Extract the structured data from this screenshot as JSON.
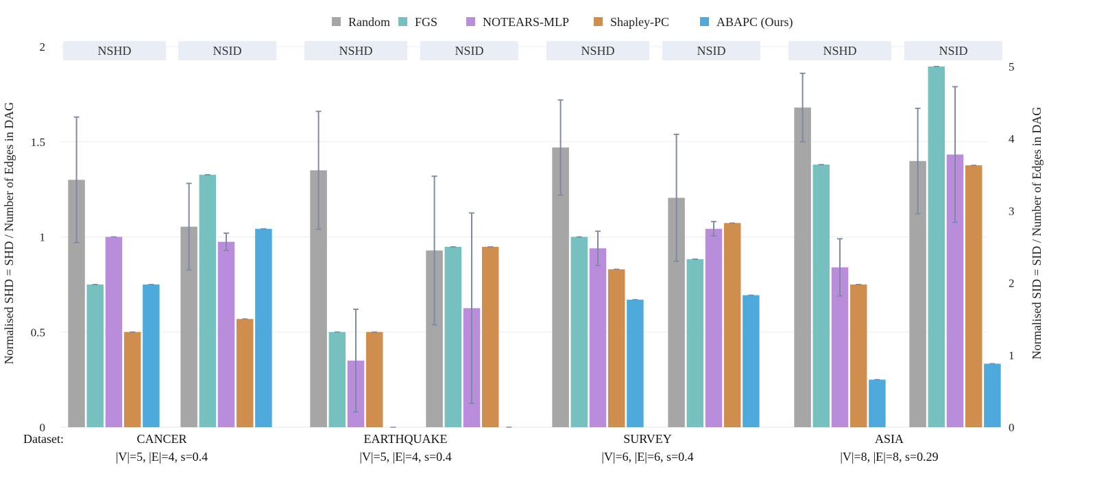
{
  "chart_data": {
    "type": "bar",
    "legend": {
      "placement": "top-center",
      "entries": [
        {
          "name": "Random",
          "color": "#a6a6a6"
        },
        {
          "name": "FGS",
          "color": "#76c1bf"
        },
        {
          "name": "NOTEARS-MLP",
          "color": "#b98ddb"
        },
        {
          "name": "Shapley-PC",
          "color": "#cf8d4e"
        },
        {
          "name": "ABAPC (Ours)",
          "color": "#4faadc"
        }
      ]
    },
    "left_axis": {
      "title": "Normalised SHD = SHD / Number of Edges in DAG",
      "range": [
        0,
        2
      ],
      "ticks": [
        "0",
        "0.5",
        "1",
        "1.5",
        "2"
      ],
      "tick_values": [
        0,
        0.5,
        1,
        1.5,
        2
      ]
    },
    "right_axis": {
      "title": "Normalised SID = SID / Number of Edges in DAG",
      "range": [
        0,
        5.25
      ],
      "ticks": [
        "0",
        "1",
        "2",
        "3",
        "4",
        "5"
      ],
      "tick_values": [
        0,
        1,
        2,
        3,
        4,
        5
      ]
    },
    "grid": true,
    "x_prefix": "Dataset:",
    "datasets": [
      {
        "name": "CANCER",
        "sub": "|V|=5, |E|=4, s=0.4",
        "panels": [
          {
            "metric": "NSHD",
            "axis": "left",
            "values": [
              1.3,
              0.75,
              1.0,
              0.5,
              0.75
            ],
            "errors": [
              0.33,
              0.0,
              0.0,
              0.0,
              0.0
            ]
          },
          {
            "metric": "NSID",
            "axis": "right",
            "values": [
              2.78,
              3.5,
              2.57,
              1.5,
              2.75
            ],
            "errors": [
              0.6,
              0.0,
              0.12,
              0.0,
              0.0
            ]
          }
        ]
      },
      {
        "name": "EARTHQUAKE",
        "sub": "|V|=5, |E|=4, s=0.4",
        "panels": [
          {
            "metric": "NSHD",
            "axis": "left",
            "values": [
              1.35,
              0.5,
              0.35,
              0.5,
              0.0
            ],
            "errors": [
              0.31,
              0.0,
              0.27,
              0.0,
              0.0
            ]
          },
          {
            "metric": "NSID",
            "axis": "right",
            "values": [
              2.45,
              2.5,
              1.65,
              2.5,
              0.0
            ],
            "errors": [
              1.03,
              0.0,
              1.32,
              0.0,
              0.0
            ]
          }
        ]
      },
      {
        "name": "SURVEY",
        "sub": "|V|=6, |E|=6, s=0.4",
        "panels": [
          {
            "metric": "NSHD",
            "axis": "left",
            "values": [
              1.47,
              1.0,
              0.94,
              0.83,
              0.67
            ],
            "errors": [
              0.25,
              0.0,
              0.09,
              0.0,
              0.0
            ]
          },
          {
            "metric": "NSID",
            "axis": "right",
            "values": [
              3.18,
              2.33,
              2.75,
              2.83,
              1.83
            ],
            "errors": [
              0.88,
              0.0,
              0.1,
              0.0,
              0.0
            ]
          }
        ]
      },
      {
        "name": "ASIA",
        "sub": "|V|=8, |E|=8, s=0.29",
        "panels": [
          {
            "metric": "NSHD",
            "axis": "left",
            "values": [
              1.68,
              1.38,
              0.84,
              0.75,
              0.25
            ],
            "errors": [
              0.18,
              0.0,
              0.15,
              0.0,
              0.0
            ]
          },
          {
            "metric": "NSID",
            "axis": "right",
            "values": [
              3.69,
              5.0,
              3.78,
              3.63,
              0.88
            ],
            "errors": [
              0.73,
              0.0,
              0.94,
              0.0,
              0.0
            ]
          }
        ]
      }
    ]
  }
}
